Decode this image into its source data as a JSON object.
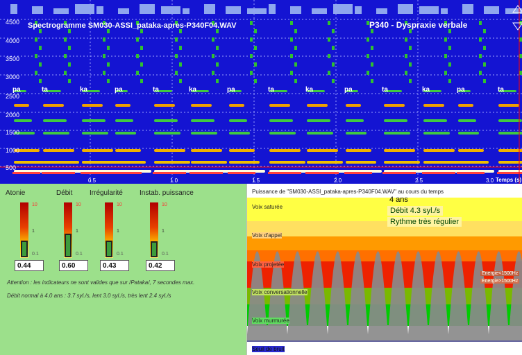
{
  "spectrogram": {
    "title": "Spectrogramme SM030-ASSI_pataka-apres-P340F04.WAV",
    "patient": "P340 -  Dyspraxie verbale",
    "y_labels": [
      "4500",
      "4000",
      "3500",
      "3000",
      "2500",
      "2000",
      "1500",
      "1000",
      "500"
    ],
    "time_labels": [
      "0.5",
      "1.0",
      "1.5",
      "2.0",
      "2.5",
      "3.0"
    ],
    "time_axis_label": "Temps (s)",
    "syllables": [
      "pa",
      "ta",
      "ka",
      "pa",
      "ta",
      "ka",
      "pa",
      "ta",
      "ka",
      "pa",
      "ta",
      "ka",
      "pa",
      "ta"
    ],
    "colors": {
      "background": "#1414d2",
      "energy_low": "#30c030",
      "energy_mid": "#f0c000",
      "energy_high": "#ffffff",
      "cursor": "#ff0000"
    }
  },
  "indicators": [
    {
      "label": "Atonie",
      "value": "0.44",
      "level": 0.26
    },
    {
      "label": "Débit",
      "value": "0.60",
      "level": 0.38
    },
    {
      "label": "Irrégularité",
      "value": "0.43",
      "level": 0.25
    },
    {
      "label": "Instab. puissance",
      "value": "0.42",
      "level": 0.24
    }
  ],
  "gauge_scale": {
    "top": "10",
    "mid": "1",
    "low": "0.1"
  },
  "notes": {
    "warning": "Attention : les indicateurs ne sont valides que sur /Pataka/, 7 secondes max.",
    "normal_rate": "Débit normal à 4.0 ans : 3.7 syl./s, lent 3.0 syl./s, très lent 2.4 syl./s"
  },
  "power": {
    "title": "Puissance de \"SM030-ASSI_pataka-apres-P340F04.WAV\" au cours du temps",
    "age": "4 ans",
    "rate": "Débit 4.3 syl./s",
    "rhythm": "Rythme très régulier",
    "bands": [
      "Voix saturée",
      "Voix d'appel",
      "Voix projetée",
      "Voix conversationnelle",
      "Voix murmurée",
      "Seuil de bruit"
    ],
    "legend": [
      "Energie<1500Hz",
      "Energie>1500Hz"
    ],
    "colors": {
      "saturee": "#ffff44",
      "appel": "#ff9a00",
      "projetee": "#ee2200",
      "conversationnelle": "#7ab800",
      "murmuree": "#00cc00",
      "bruit": "#ffffff",
      "gray": "#8a8a8a"
    }
  }
}
